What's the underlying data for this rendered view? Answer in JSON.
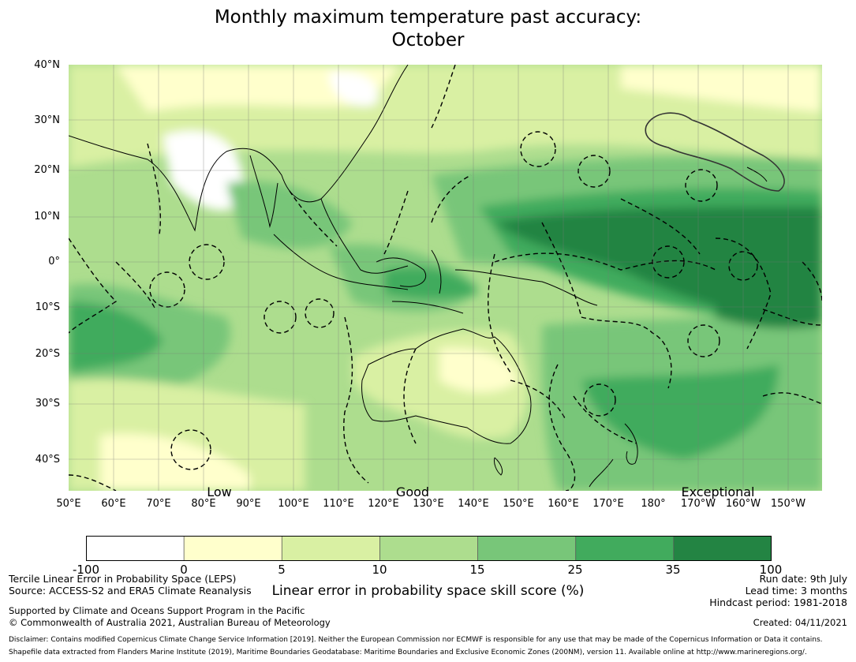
{
  "title": {
    "line1": "Monthly maximum temperature past accuracy:",
    "line2": "October"
  },
  "map": {
    "lat_labels": [
      "40°N",
      "30°N",
      "20°N",
      "10°N",
      "0°",
      "10°S",
      "20°S",
      "30°S",
      "40°S"
    ],
    "lon_labels": [
      "50°E",
      "60°E",
      "70°E",
      "80°E",
      "90°E",
      "100°E",
      "110°E",
      "120°E",
      "130°E",
      "140°E",
      "150°E",
      "160°E",
      "170°E",
      "180°",
      "170°W",
      "160°W",
      "150°W"
    ],
    "skill_labels": [
      "Low",
      "Good",
      "Exceptional"
    ]
  },
  "colorbar": {
    "ticks": [
      "-100",
      "0",
      "5",
      "10",
      "15",
      "25",
      "35",
      "100"
    ],
    "colors": [
      "#ffffff",
      "#ffffcc",
      "#d9f0a3",
      "#addd8e",
      "#78c679",
      "#41ab5d",
      "#238443"
    ],
    "label": "Linear error in probability space skill score (%)"
  },
  "footer": {
    "method": "Tercile Linear Error in Probability Space (LEPS)",
    "source": "Source: ACCESS-S2 and ERA5 Climate Reanalysis",
    "support": "Supported by Climate and Oceans Support Program in the Pacific",
    "copyright": "© Commonwealth of Australia 2021, Australian Bureau of Meteorology",
    "run_date": "Run date: 9th July",
    "lead_time": "Lead time: 3 months",
    "hindcast": "Hindcast period: 1981-2018",
    "created": "Created: 04/11/2021",
    "disclaimer": "Disclaimer: Contains modified Copernicus Climate Change Service Information [2019]. Neither the European Commission nor ECMWF is responsible for any use that may be made of the Copernicus Information or Data it contains.",
    "shapefile": "Shapefile data extracted from Flanders Marine Institute (2019), Maritime Boundaries Geodatabase: Maritime Boundaries and Exclusive Economic Zones (200NM), version 11. Available online at http://www.marineregions.org/."
  }
}
